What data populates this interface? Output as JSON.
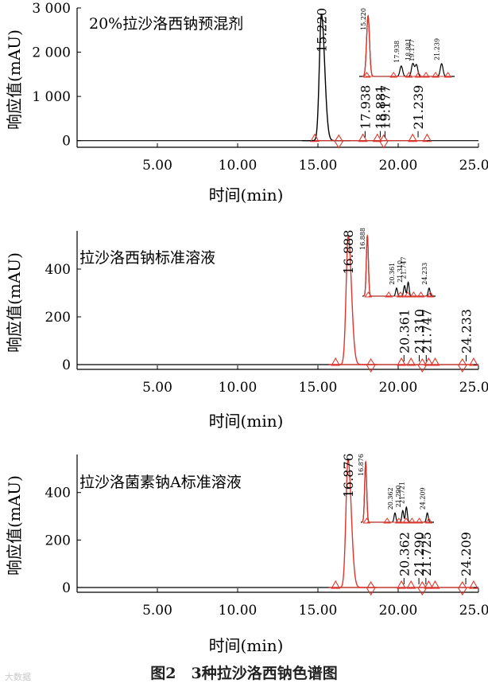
{
  "figure": {
    "caption": "图2　3种拉沙洛西钠色谱图",
    "watermark": "大数据"
  },
  "colors": {
    "main": "#000000",
    "fit": "#e0352b",
    "background": "#ffffff"
  },
  "chart_data": [
    {
      "type": "line",
      "title": "20%拉沙洛西钠预混剂",
      "xlabel": "时间(min)",
      "ylabel": "响应值(mAU)",
      "xlim": [
        0,
        25
      ],
      "ylim": [
        -150,
        3000
      ],
      "xticks": [
        "5.00",
        "10.00",
        "15.00",
        "20.00",
        "25.00"
      ],
      "yticks": [
        "0",
        "1 000",
        "2 000",
        "3 000"
      ],
      "trace_color": "black",
      "peaks": [
        {
          "rt": 15.22,
          "height": 2850,
          "label": "15.220",
          "main": true
        },
        {
          "rt": 17.938,
          "height": 12,
          "label": "17.938"
        },
        {
          "rt": 18.881,
          "height": 12,
          "label": "18.881"
        },
        {
          "rt": 19.177,
          "height": 10,
          "label": "19.177"
        },
        {
          "rt": 21.239,
          "height": 14,
          "label": "21.239"
        }
      ],
      "markers": [
        14.8,
        16.3,
        17.8,
        18.7,
        19.1,
        20.9,
        21.8
      ],
      "inset": {
        "x_range": [
          14.5,
          22.3
        ],
        "peaks": [
          {
            "rt": 15.22,
            "height": 2.6,
            "label": "15.220",
            "main": true
          },
          {
            "rt": 17.938,
            "height": 0.45,
            "label": "17.938"
          },
          {
            "rt": 18.881,
            "height": 0.55,
            "label": "18.881"
          },
          {
            "rt": 19.177,
            "height": 0.5,
            "label": "19.177"
          },
          {
            "rt": 21.239,
            "height": 0.55,
            "label": "21.239"
          }
        ]
      }
    },
    {
      "type": "line",
      "title": "拉沙洛西钠标准溶液",
      "xlabel": "时间(min)",
      "ylabel": "响应值(mAU)",
      "xlim": [
        0,
        25
      ],
      "ylim": [
        -20,
        560
      ],
      "xticks": [
        "5.00",
        "10.00",
        "15.00",
        "20.00",
        "25.00"
      ],
      "yticks": [
        "0",
        "200",
        "400"
      ],
      "trace_color": "red",
      "peaks": [
        {
          "rt": 16.888,
          "height": 540,
          "label": "16.888",
          "main": true
        },
        {
          "rt": 20.361,
          "height": 2,
          "label": "20.361"
        },
        {
          "rt": 21.31,
          "height": 3,
          "label": "21.310"
        },
        {
          "rt": 21.747,
          "height": 3,
          "label": "21.747"
        },
        {
          "rt": 24.233,
          "height": 2,
          "label": "24.233"
        }
      ],
      "markers": [
        16.1,
        18.3,
        20.2,
        20.8,
        21.5,
        21.9,
        22.3,
        24.0,
        24.7
      ],
      "inset": {
        "x_range": [
          16.3,
          25.0
        ],
        "peaks": [
          {
            "rt": 16.888,
            "height": 2.6,
            "label": "16.888",
            "main": true
          },
          {
            "rt": 20.361,
            "height": 0.35,
            "label": "20.361"
          },
          {
            "rt": 21.31,
            "height": 0.45,
            "label": "21.310"
          },
          {
            "rt": 21.747,
            "height": 0.6,
            "label": "21.747"
          },
          {
            "rt": 24.233,
            "height": 0.35,
            "label": "24.233"
          }
        ]
      }
    },
    {
      "type": "line",
      "title": "拉沙洛菌素钠A标准溶液",
      "xlabel": "时间(min)",
      "ylabel": "响应值(mAU)",
      "xlim": [
        0,
        25
      ],
      "ylim": [
        -20,
        560
      ],
      "xticks": [
        "5.00",
        "10.00",
        "15.00",
        "20.00",
        "25.00"
      ],
      "yticks": [
        "0",
        "200",
        "400"
      ],
      "trace_color": "red",
      "peaks": [
        {
          "rt": 16.876,
          "height": 540,
          "label": "16.876",
          "main": true
        },
        {
          "rt": 20.362,
          "height": 2,
          "label": "20.362"
        },
        {
          "rt": 21.29,
          "height": 3,
          "label": "21.290"
        },
        {
          "rt": 21.725,
          "height": 3,
          "label": "21.725"
        },
        {
          "rt": 24.209,
          "height": 2,
          "label": "24.209"
        }
      ],
      "markers": [
        16.1,
        18.3,
        20.2,
        20.8,
        21.5,
        21.9,
        22.3,
        24.0,
        24.7
      ],
      "inset": {
        "x_range": [
          16.3,
          25.0
        ],
        "peaks": [
          {
            "rt": 16.876,
            "height": 2.6,
            "label": "16.876",
            "main": true
          },
          {
            "rt": 20.362,
            "height": 0.4,
            "label": "20.362"
          },
          {
            "rt": 21.29,
            "height": 0.5,
            "label": "21.290"
          },
          {
            "rt": 21.721,
            "height": 0.65,
            "label": "21.721"
          },
          {
            "rt": 24.209,
            "height": 0.4,
            "label": "24.209"
          }
        ]
      }
    }
  ]
}
